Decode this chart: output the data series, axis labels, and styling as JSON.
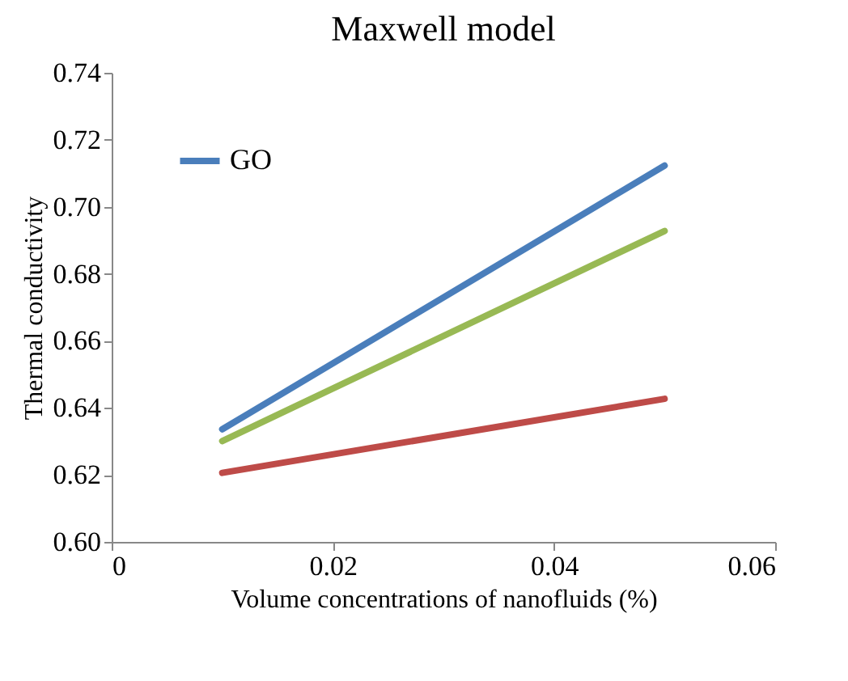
{
  "chart_data": {
    "type": "line",
    "title": "Maxwell model",
    "xlabel": "Volume concentrations of nanofluids (%)",
    "ylabel": "Thermal conductivity",
    "xlim": [
      0,
      0.06
    ],
    "xticks": [
      0,
      0.02,
      0.04,
      0.06
    ],
    "ylim": [
      0.6,
      0.74
    ],
    "yticks": [
      {
        "value": 0.6,
        "label": "0.60"
      },
      0.62,
      0.64,
      0.66,
      0.68,
      {
        "value": 0.7,
        "label": "0.70"
      },
      0.72,
      0.74
    ],
    "x": [
      0.01,
      0.05
    ],
    "grid": false,
    "legend": "top left",
    "marker": "none",
    "line_style": "solid",
    "series": [
      {
        "name": "GO",
        "color": "#4a7ebb",
        "values": [
          0.6336,
          0.7123
        ]
      },
      {
        "color": "#98b954",
        "values": [
          0.6301,
          0.6928
        ]
      },
      {
        "color": "#be4b48",
        "values": [
          0.6206,
          0.6427
        ]
      }
    ]
  }
}
